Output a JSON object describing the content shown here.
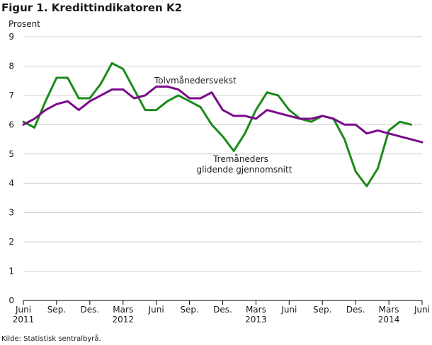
{
  "chart_data": {
    "type": "line",
    "title": "Figur 1. Kredittindikatoren K2",
    "ylabel": "Prosent",
    "xlabel": "",
    "ylim": [
      0,
      9
    ],
    "yticks": [
      0,
      1,
      2,
      3,
      4,
      5,
      6,
      7,
      8,
      9
    ],
    "grid": true,
    "x_tick_labels": [
      {
        "i": 0,
        "label": "Juni",
        "year": "2011"
      },
      {
        "i": 3,
        "label": "Sep.",
        "year": ""
      },
      {
        "i": 6,
        "label": "Des.",
        "year": ""
      },
      {
        "i": 9,
        "label": "Mars",
        "year": "2012"
      },
      {
        "i": 12,
        "label": "Juni",
        "year": ""
      },
      {
        "i": 15,
        "label": "Sep.",
        "year": ""
      },
      {
        "i": 18,
        "label": "Des.",
        "year": ""
      },
      {
        "i": 21,
        "label": "Mars",
        "year": "2013"
      },
      {
        "i": 24,
        "label": "Juni",
        "year": ""
      },
      {
        "i": 27,
        "label": "Sep.",
        "year": ""
      },
      {
        "i": 30,
        "label": "Des.",
        "year": ""
      },
      {
        "i": 33,
        "label": "Mars",
        "year": "2014"
      },
      {
        "i": 36,
        "label": "Juni",
        "year": ""
      }
    ],
    "x": [
      "2011-06",
      "2011-07",
      "2011-08",
      "2011-09",
      "2011-10",
      "2011-11",
      "2011-12",
      "2012-01",
      "2012-02",
      "2012-03",
      "2012-04",
      "2012-05",
      "2012-06",
      "2012-07",
      "2012-08",
      "2012-09",
      "2012-10",
      "2012-11",
      "2012-12",
      "2013-01",
      "2013-02",
      "2013-03",
      "2013-04",
      "2013-05",
      "2013-06",
      "2013-07",
      "2013-08",
      "2013-09",
      "2013-10",
      "2013-11",
      "2013-12",
      "2014-01",
      "2014-02",
      "2014-03",
      "2014-04",
      "2014-05",
      "2014-06"
    ],
    "series": [
      {
        "name": "Tolvmånedersvekst",
        "color": "#7b0a8b",
        "values": [
          6.0,
          6.2,
          6.5,
          6.7,
          6.8,
          6.5,
          6.8,
          7.0,
          7.2,
          7.2,
          6.9,
          7.0,
          7.3,
          7.3,
          7.2,
          6.9,
          6.9,
          7.1,
          6.5,
          6.3,
          6.3,
          6.2,
          6.5,
          6.4,
          6.3,
          6.2,
          6.2,
          6.3,
          6.2,
          6.0,
          6.0,
          5.7,
          5.8,
          5.7,
          5.6,
          5.5,
          5.4
        ]
      },
      {
        "name": "Tremåneders glidende gjennomsnitt",
        "label_lines": [
          "Tremåneders",
          "glidende gjennomsnitt"
        ],
        "color": "#1a8a1a",
        "values": [
          6.1,
          5.9,
          6.8,
          7.6,
          7.6,
          6.9,
          6.9,
          7.4,
          8.1,
          7.9,
          7.2,
          6.5,
          6.5,
          6.8,
          7.0,
          6.8,
          6.6,
          6.0,
          5.6,
          5.1,
          5.7,
          6.5,
          7.1,
          7.0,
          6.5,
          6.2,
          6.1,
          6.3,
          6.2,
          5.5,
          4.4,
          3.9,
          4.5,
          5.8,
          6.1,
          6.0,
          null
        ]
      }
    ]
  },
  "source": "Kilde: Statistisk sentralbyrå."
}
